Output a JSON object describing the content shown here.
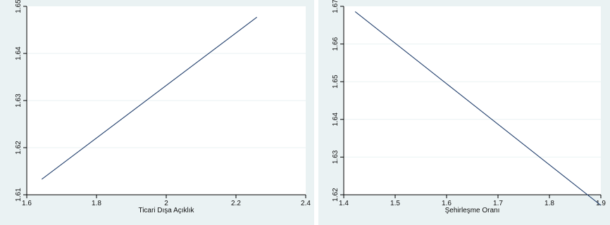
{
  "chart_data": [
    {
      "type": "line",
      "xlabel": "Ticari Dışa Açıklık",
      "ylabel": "",
      "xlim": [
        1.6,
        2.4
      ],
      "ylim": [
        1.61,
        1.65
      ],
      "x_ticks": [
        "1.6",
        "1.8",
        "2",
        "2.2",
        "2.4"
      ],
      "y_ticks": [
        "1.61",
        "1.62",
        "1.63",
        "1.64",
        "1.65"
      ],
      "grid": true,
      "series": [
        {
          "x": [
            1.643,
            2.26
          ],
          "values": [
            1.6133,
            1.6477
          ]
        }
      ],
      "colors": {
        "line": "#1f3d6b",
        "background": "#eaf2f3",
        "plot_bg": "#ffffff",
        "grid": "#eaf2f3"
      }
    },
    {
      "type": "line",
      "xlabel": "Şehirleşme Oranı",
      "ylabel": "",
      "xlim": [
        1.4,
        1.9
      ],
      "ylim": [
        1.62,
        1.67
      ],
      "x_ticks": [
        "1.4",
        "1.5",
        "1.6",
        "1.7",
        "1.8",
        "1.9"
      ],
      "y_ticks": [
        "1.62",
        "1.63",
        "1.64",
        "1.65",
        "1.66",
        "1.67"
      ],
      "grid": true,
      "series": [
        {
          "x": [
            1.422,
            1.9
          ],
          "values": [
            1.6686,
            1.6172
          ]
        }
      ],
      "colors": {
        "line": "#1f3d6b",
        "background": "#eaf2f3",
        "plot_bg": "#ffffff",
        "grid": "#eaf2f3"
      }
    }
  ]
}
